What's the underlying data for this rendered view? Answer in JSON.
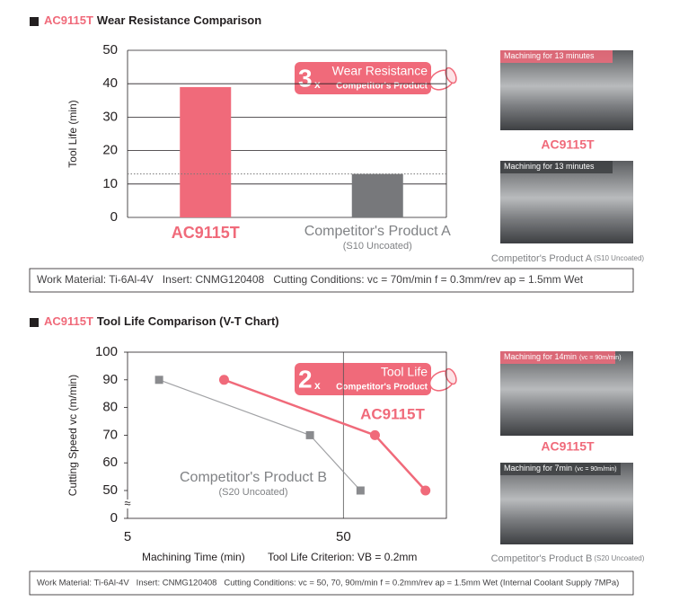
{
  "chart_data": [
    {
      "type": "bar",
      "title_prefix": "AC9115T",
      "title": "Wear Resistance Comparison",
      "ylabel": "Tool Life (min)",
      "categories": [
        "AC9115T",
        "Competitor's Product A"
      ],
      "category_subtitle": "(S10 Uncoated)",
      "values": [
        39,
        13
      ],
      "colors": [
        "#f06a7a",
        "#77787b"
      ],
      "ylim": [
        0,
        50
      ],
      "yticks": [
        0,
        10,
        20,
        30,
        40,
        50
      ],
      "grid": true,
      "annotation": {
        "factor": "3",
        "times": "x",
        "title": "Wear Resistance",
        "text": "Competitor's Product"
      },
      "photos": [
        {
          "caption": "Machining for 13 minutes",
          "label": "AC9115T"
        },
        {
          "caption": "Machining for 13 minutes",
          "label": "Competitor's Product A",
          "note": "(S10 Uncoated)"
        }
      ],
      "footnote": "Work Material: Ti-6Al-4V   Insert: CNMG120408   Cutting Conditions: vc = 70m/min f = 0.3mm/rev ap = 1.5mm Wet"
    },
    {
      "type": "line",
      "title_prefix": "AC9115T",
      "title": "Tool Life Comparison (V-T Chart)",
      "ylabel": "Cutting Speed vc (m/min)",
      "xlabel": "Machining Time (min)",
      "criterion": "Tool Life Criterion: VB = 0.2mm",
      "xscale": "log",
      "xlim": [
        5,
        150
      ],
      "xticks": [
        5,
        50
      ],
      "xgrid": true,
      "ylim": [
        0,
        100
      ],
      "yticks": [
        0,
        50,
        60,
        70,
        80,
        90,
        100
      ],
      "y_break": [
        0,
        50
      ],
      "break_symbol": "≈",
      "series": [
        {
          "name": "Competitor's Product B",
          "note": "(S20 Uncoated)",
          "color": "#8a8b8e",
          "marker": "square",
          "x": [
            7,
            35,
            60
          ],
          "values": [
            90,
            70,
            50
          ]
        },
        {
          "name": "AC9115T",
          "color": "#f06a7a",
          "marker": "circle",
          "x": [
            14,
            70,
            120
          ],
          "values": [
            90,
            70,
            50
          ]
        }
      ],
      "annotation": {
        "factor": "2",
        "times": "x",
        "title": "Tool Life",
        "text": "Competitor's Product"
      },
      "photos": [
        {
          "caption": "Machining for 14min",
          "caption_note": "(vc = 90m/min)",
          "label": "AC9115T"
        },
        {
          "caption": "Machining for 7min",
          "caption_note": "(vc = 90m/min)",
          "label": "Competitor's Product B",
          "note": "(S20 Uncoated)"
        }
      ],
      "footnote": "Work Material: Ti-6Al-4V   Insert: CNMG120408   Cutting Conditions: vc = 50, 70, 90m/min f = 0.2mm/rev ap = 1.5mm Wet (Internal Coolant Supply 7MPa)"
    }
  ]
}
